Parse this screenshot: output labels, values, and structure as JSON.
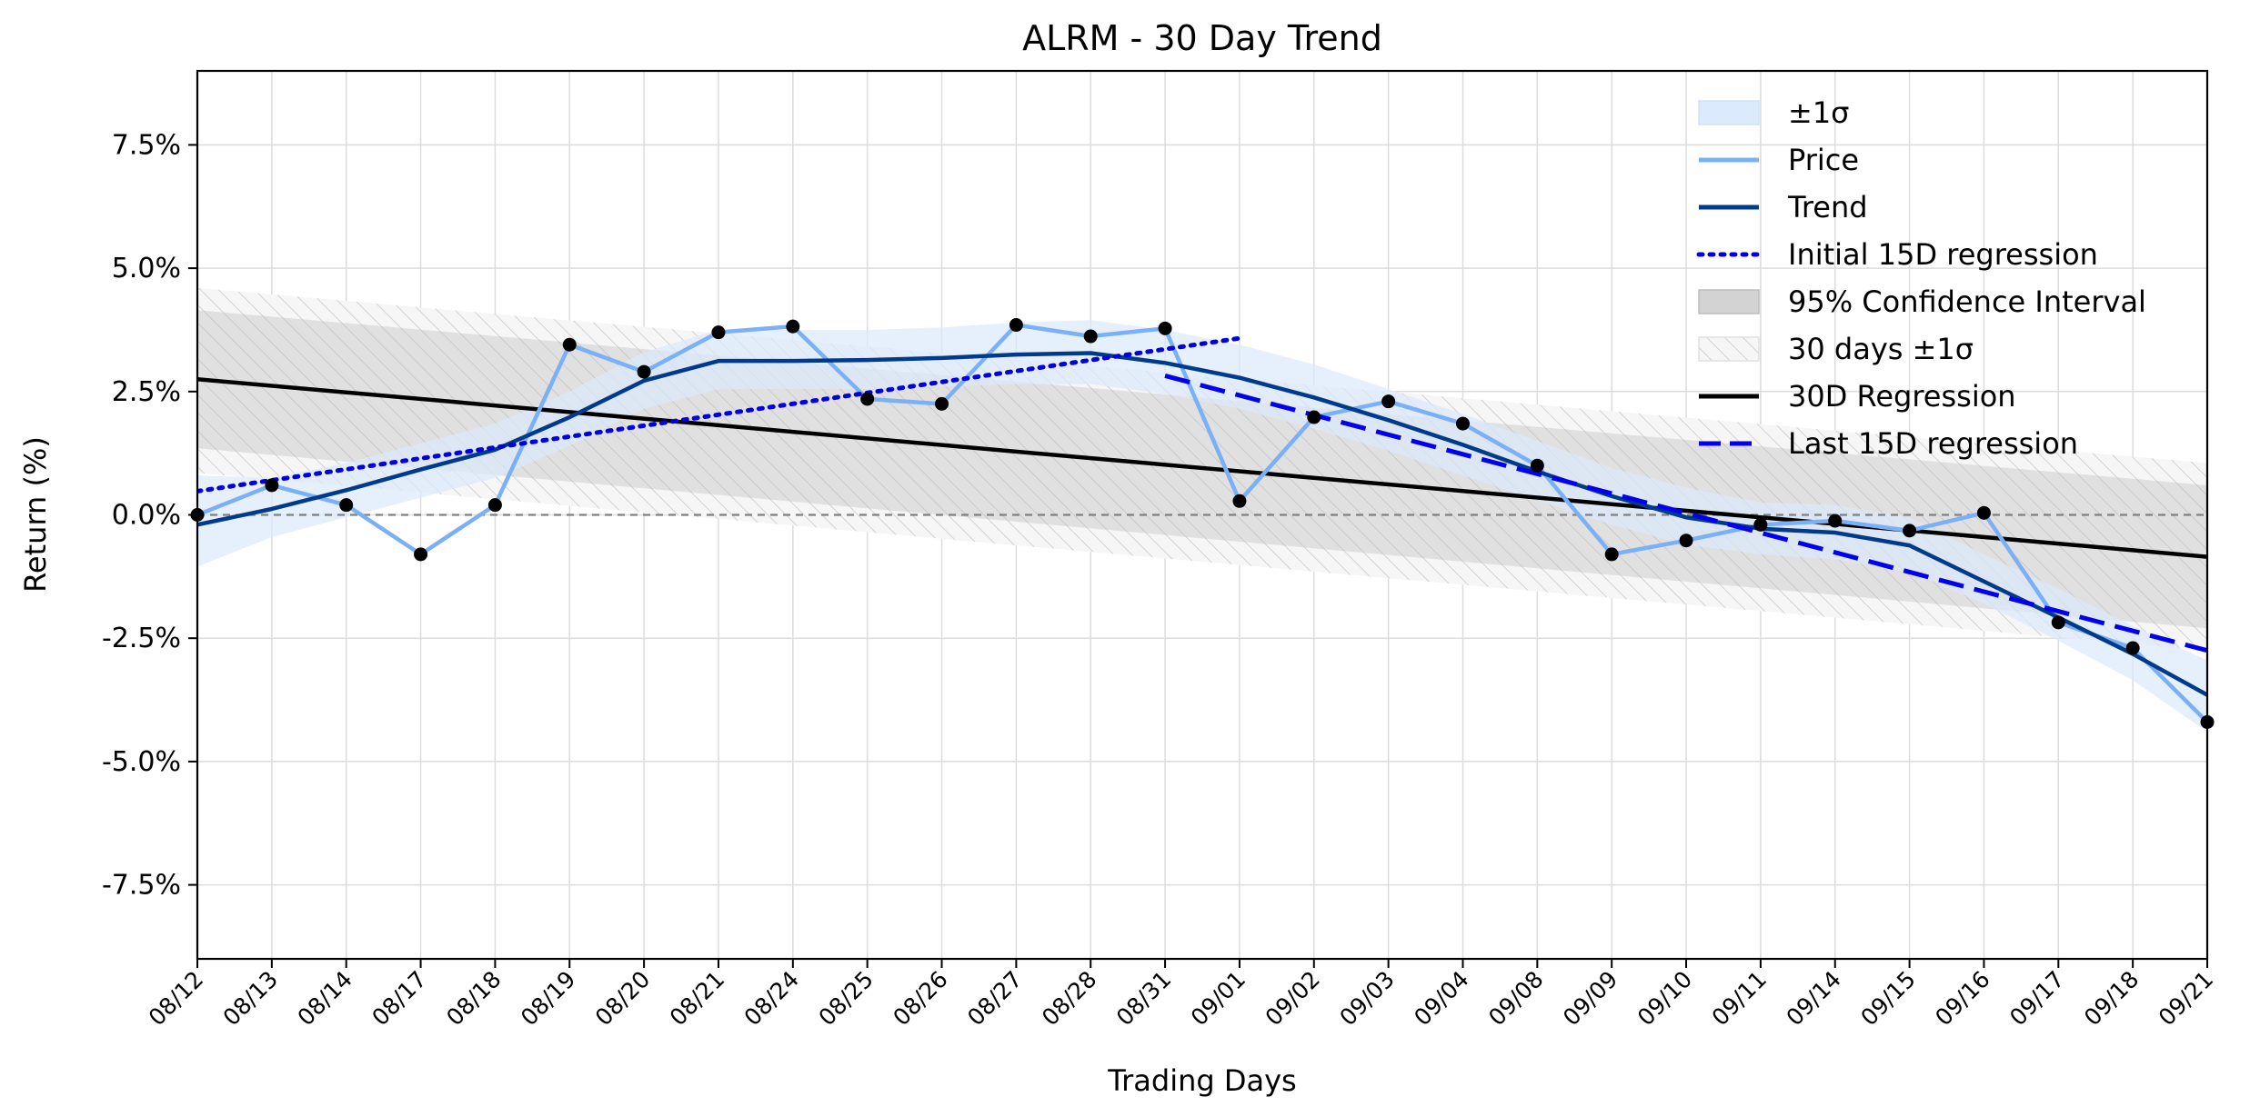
{
  "chart_data": {
    "type": "line",
    "title": "ALRM - 30 Day Trend",
    "xlabel": "Trading Days",
    "ylabel": "Return (%)",
    "ylim": [
      -9.0,
      9.0
    ],
    "yticks": [
      -7.5,
      -5.0,
      -2.5,
      0.0,
      2.5,
      5.0,
      7.5
    ],
    "ytick_labels": [
      "-7.5%",
      "-5.0%",
      "-2.5%",
      "0.0%",
      "2.5%",
      "5.0%",
      "7.5%"
    ],
    "categories": [
      "08/12",
      "08/13",
      "08/14",
      "08/17",
      "08/18",
      "08/19",
      "08/20",
      "08/21",
      "08/24",
      "08/25",
      "08/26",
      "08/27",
      "08/28",
      "08/31",
      "09/01",
      "09/02",
      "09/03",
      "09/04",
      "09/08",
      "09/09",
      "09/10",
      "09/11",
      "09/14",
      "09/15",
      "09/16",
      "09/17",
      "09/18",
      "09/21"
    ],
    "grid": true,
    "legend_position": "top-right",
    "zero_line": 0.0,
    "series": [
      {
        "name": "Price",
        "color": "#7ab0f5",
        "values": [
          0.0,
          0.6,
          0.2,
          -0.8,
          0.2,
          3.45,
          2.9,
          3.7,
          3.82,
          2.35,
          2.25,
          3.85,
          3.62,
          3.78,
          0.28,
          1.98,
          2.3,
          1.85,
          1.0,
          -0.8,
          -0.52,
          -0.2,
          -0.12,
          -0.32,
          0.04,
          -2.18,
          -2.7,
          -4.2
        ]
      },
      {
        "name": "Trend",
        "color": "#003a8c",
        "values": [
          -0.2,
          0.12,
          0.5,
          0.92,
          1.32,
          1.98,
          2.72,
          3.12,
          3.12,
          3.14,
          3.18,
          3.25,
          3.28,
          3.08,
          2.78,
          2.38,
          1.92,
          1.42,
          0.88,
          0.38,
          -0.05,
          -0.28,
          -0.36,
          -0.62,
          -1.35,
          -2.08,
          -2.82,
          -3.65
        ]
      },
      {
        "name": "±1σ",
        "color": "#dbeafc",
        "lower": [
          -1.05,
          -0.45,
          -0.05,
          0.35,
          0.75,
          1.4,
          2.15,
          2.55,
          2.55,
          2.55,
          2.6,
          2.65,
          2.65,
          2.45,
          2.15,
          1.75,
          1.3,
          0.8,
          0.3,
          -0.2,
          -0.6,
          -0.8,
          -0.9,
          -1.15,
          -1.8,
          -2.55,
          -3.35,
          -4.4
        ],
        "upper": [
          0.8,
          0.75,
          1.05,
          1.45,
          1.85,
          2.5,
          3.3,
          3.75,
          3.75,
          3.75,
          3.8,
          3.9,
          3.95,
          3.75,
          3.45,
          3.05,
          2.55,
          2.05,
          1.5,
          0.95,
          0.55,
          0.25,
          0.2,
          -0.05,
          -0.8,
          -1.5,
          -2.25,
          -2.95
        ]
      },
      {
        "name": "Initial 15D regression",
        "color": "#0000dd",
        "x_range": [
          "08/12",
          "09/01"
        ],
        "y_range": [
          0.48,
          3.58
        ]
      },
      {
        "name": "95% Confidence Interval",
        "color": "#d3d3d3",
        "lower_range": [
          1.35,
          -2.3
        ],
        "upper_range": [
          4.15,
          0.6
        ]
      },
      {
        "name": "30 days ±1σ",
        "color": "#cfcfcf",
        "lower_range": [
          0.85,
          -2.75
        ],
        "upper_range": [
          4.6,
          1.05
        ]
      },
      {
        "name": "30D Regression",
        "color": "#000000",
        "y_range": [
          2.75,
          -0.85
        ]
      },
      {
        "name": "Last 15D regression",
        "color": "#0000ee",
        "x_range": [
          "08/31",
          "09/21"
        ],
        "y_range": [
          2.82,
          -2.75
        ]
      }
    ],
    "legend": [
      {
        "label": "±1σ",
        "style": "band",
        "color": "#dbeafc"
      },
      {
        "label": "Price",
        "style": "line",
        "color": "#7ab0f5"
      },
      {
        "label": "Trend",
        "style": "line",
        "color": "#003a8c"
      },
      {
        "label": "Initial 15D regression",
        "style": "dotted",
        "color": "#0000dd"
      },
      {
        "label": "95% Confidence Interval",
        "style": "band",
        "color": "#d3d3d3"
      },
      {
        "label": "30 days ±1σ",
        "style": "hatch",
        "color": "#cfcfcf"
      },
      {
        "label": "30D Regression",
        "style": "line",
        "color": "#000000"
      },
      {
        "label": "Last 15D regression",
        "style": "dashed",
        "color": "#0000ee"
      }
    ]
  }
}
